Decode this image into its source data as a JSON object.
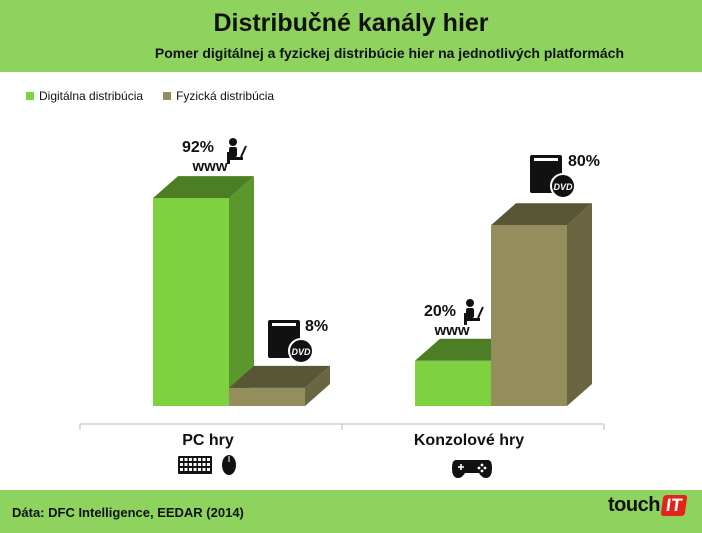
{
  "title": "Distribučné kanály hier",
  "subtitle": "Pomer digitálnej a fyzickej distribúcie hier na jednotlivých platformách",
  "legend": [
    {
      "label": "Digitálna distribúcia",
      "color": "#7fd23f"
    },
    {
      "label": "Fyzická distribúcia",
      "color": "#948d5c"
    }
  ],
  "source": "Dáta: DFC Intelligence, EEDAR  (2014)",
  "logo": {
    "text": "touch",
    "badge": "IT",
    "badge_color": "#e1251b"
  },
  "chart_data": {
    "type": "bar",
    "categories": [
      "PC hry",
      "Konzolové hry"
    ],
    "series": [
      {
        "name": "Digitálna distribúcia",
        "values": [
          92,
          20
        ],
        "labels": [
          "92%",
          "20%"
        ],
        "color": "#7fd23f",
        "icon": "user-laptop-www-icon"
      },
      {
        "name": "Fyzická distribúcia",
        "values": [
          8,
          80
        ],
        "labels": [
          "8%",
          "80%"
        ],
        "color": "#948d5c",
        "icon": "dvd-case-icon"
      }
    ],
    "category_icons": [
      "keyboard-mouse-icon",
      "gamepad-icon"
    ],
    "ylim": [
      0,
      100
    ],
    "grid": false,
    "legend_position": "top-left"
  }
}
